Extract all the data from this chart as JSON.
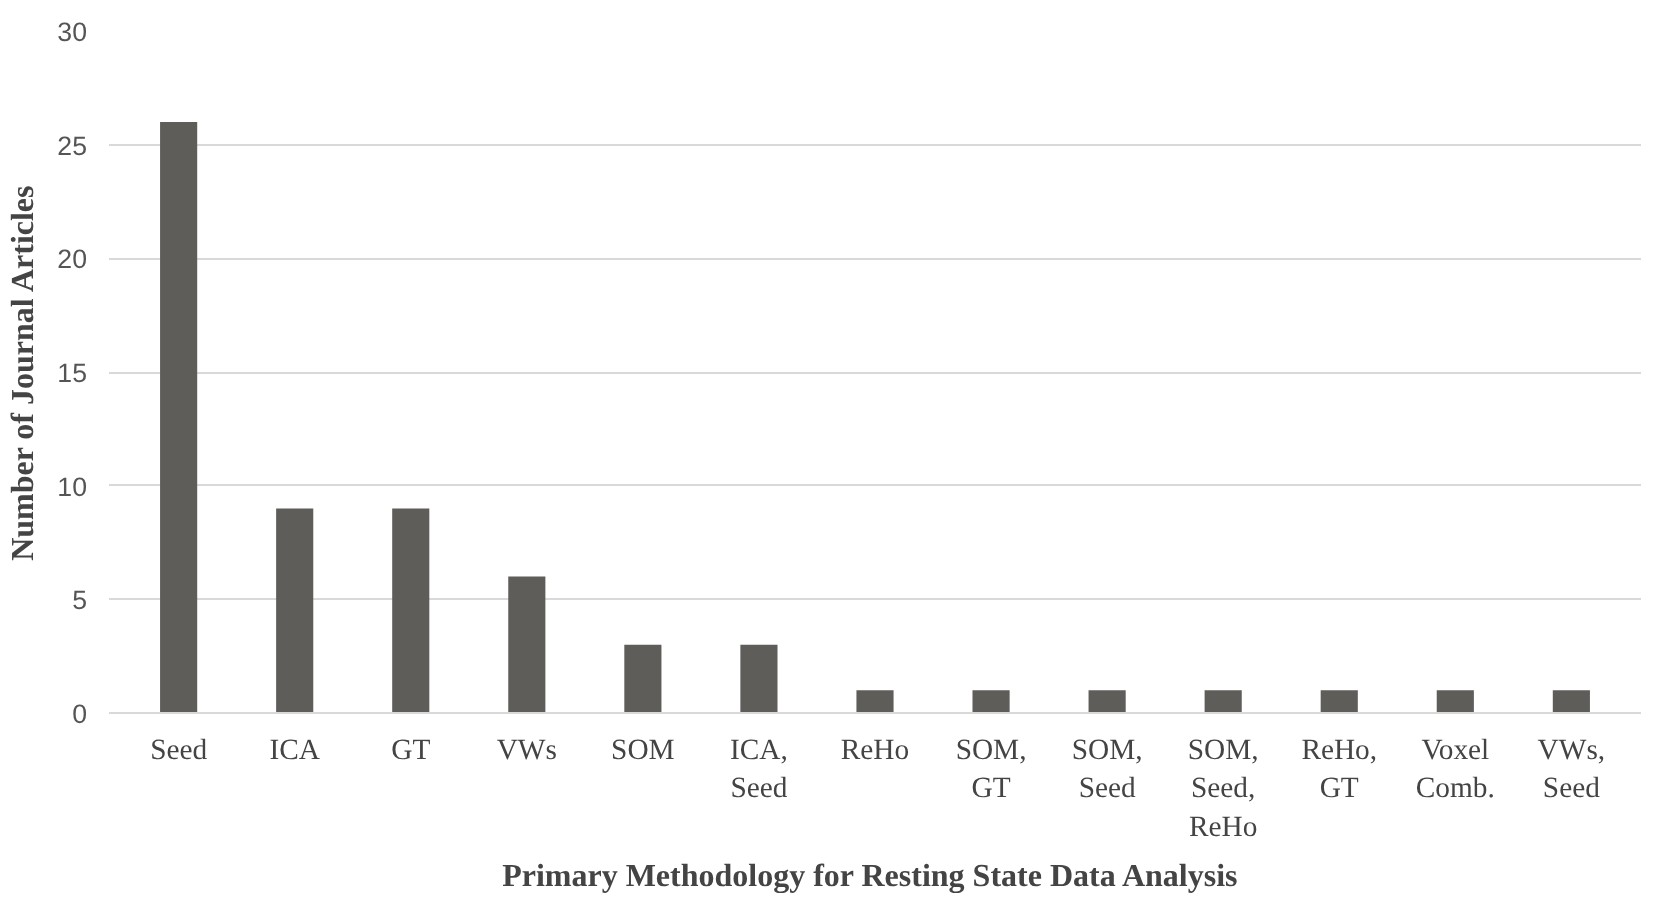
{
  "chart_data": {
    "type": "bar",
    "xlabel": "Primary Methodology  for Resting State Data Analysis",
    "ylabel": "Number of Journal Articles",
    "categories": [
      "Seed",
      "ICA",
      "GT",
      "VWs",
      "SOM",
      "ICA, Seed",
      "ReHo",
      "SOM, GT",
      "SOM, Seed",
      "SOM, Seed, ReHo",
      "ReHo, GT",
      "Voxel Comb.",
      "VWs, Seed"
    ],
    "values": [
      26,
      9,
      9,
      6,
      3,
      3,
      1,
      1,
      1,
      1,
      1,
      1,
      1
    ],
    "color": "#5f5d59",
    "ylim": [
      0,
      30
    ],
    "yticks": [
      0,
      5,
      10,
      15,
      20,
      25,
      30
    ],
    "grid": "y"
  }
}
